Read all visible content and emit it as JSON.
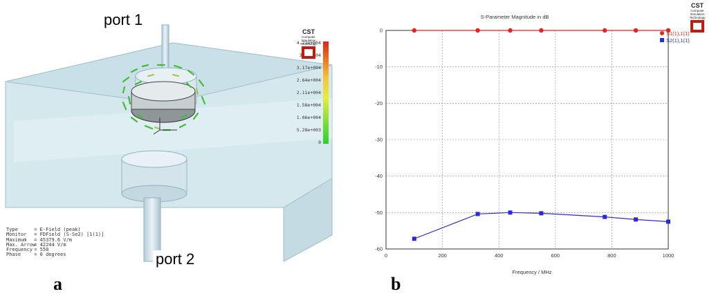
{
  "panel_a": {
    "label": "a",
    "port1": "port 1",
    "port2": "port 2",
    "logo": {
      "title": "CST",
      "subtitle1": "Computer Simulation",
      "subtitle2": "Technology"
    },
    "colorbar": [
      "4.22e+004",
      "3.7e+004",
      "3.17e+004",
      "2.64e+004",
      "2.11e+004",
      "1.58e+004",
      "1.06e+004",
      "5.28e+003",
      "0"
    ],
    "info": [
      {
        "key": "Type",
        "value": "= E-Field (peak)"
      },
      {
        "key": "Monitor",
        "value": "= FDField (S-Se2) [1(1)]"
      },
      {
        "key": "Maximum",
        "value": "= 45379.6 V/m"
      },
      {
        "key": "Max. Arrow",
        "value": "= 42244 V/m"
      },
      {
        "key": "Frequency",
        "value": "= 550"
      },
      {
        "key": "Phase",
        "value": "= 0 degrees"
      }
    ]
  },
  "panel_b": {
    "label": "b",
    "logo": {
      "title": "CST",
      "subtitle1": "Computer Simulation",
      "subtitle2": "Technology"
    }
  },
  "chart_data": {
    "type": "line",
    "title": "S-Parameter Magnitude in dB",
    "xlabel": "Frequency / MHz",
    "ylabel": "",
    "xlim": [
      0,
      1000
    ],
    "ylim": [
      -60,
      0
    ],
    "xticks": [
      0,
      200,
      400,
      600,
      800,
      1000
    ],
    "yticks": [
      0,
      -10,
      -20,
      -30,
      -40,
      -50,
      -60
    ],
    "grid": true,
    "legend_position": "top-right",
    "series": [
      {
        "name": "S1(1),1(1)",
        "color": "#e8231c",
        "marker": "circle",
        "x": [
          100,
          325,
          440,
          550,
          775,
          885,
          1000
        ],
        "y": [
          0,
          0,
          0,
          0,
          0,
          0,
          0
        ]
      },
      {
        "name": "S2(1),1(1)",
        "color": "#2a2ad8",
        "marker": "square",
        "x": [
          100,
          325,
          440,
          550,
          775,
          885,
          1000
        ],
        "y": [
          -57.2,
          -50.4,
          -50.0,
          -50.2,
          -51.2,
          -51.9,
          -52.5
        ]
      }
    ]
  },
  "colors": {
    "field_high": "#e8231c",
    "field_mid": "#f5e23a",
    "field_low": "#2bd12b"
  }
}
